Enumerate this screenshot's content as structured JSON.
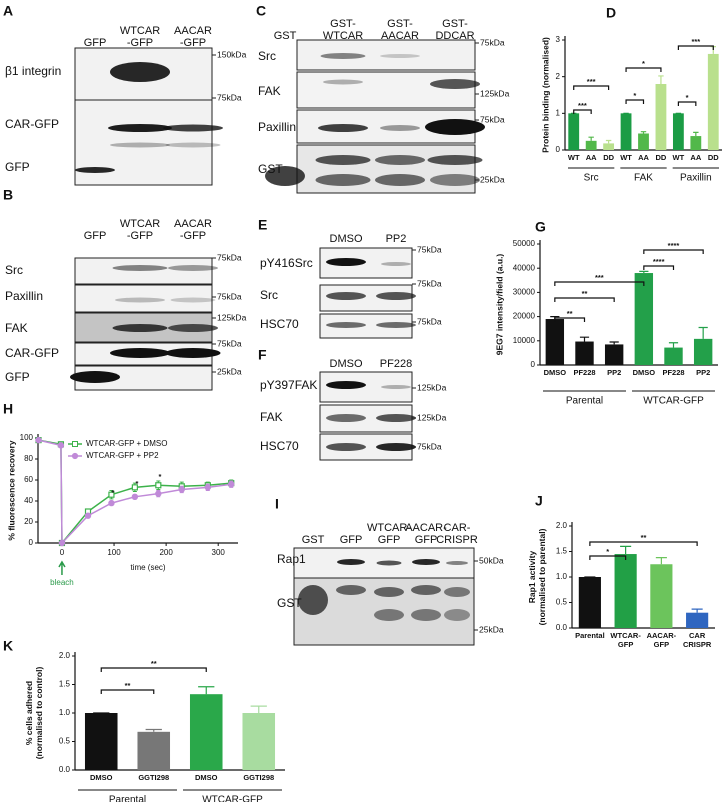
{
  "blots": [
    {
      "letter": "A",
      "lanes": [
        "GFP",
        "WTCAR\n-GFP",
        "AACAR\n-GFP"
      ],
      "rows": [
        {
          "label": "β1 integrin",
          "marker": "150kDa"
        },
        {
          "label": "CAR-GFP",
          "marker": "75kDa"
        },
        {
          "label": "GFP"
        }
      ]
    },
    {
      "letter": "B",
      "lanes": [
        "GFP",
        "WTCAR\n-GFP",
        "AACAR\n-GFP"
      ],
      "rows": [
        {
          "label": "Src",
          "marker": "75kDa"
        },
        {
          "label": "Paxillin",
          "marker": "75kDa"
        },
        {
          "label": "FAK",
          "marker": "125kDa"
        },
        {
          "label": "CAR-GFP",
          "marker": "75kDa"
        },
        {
          "label": "GFP",
          "marker": "25kDa"
        }
      ]
    },
    {
      "letter": "C",
      "lanes": [
        "GST",
        "GST-\nWTCAR",
        "GST-\nAACAR",
        "GST-\nDDCAR"
      ],
      "rows": [
        {
          "label": "Src",
          "marker": "75kDa"
        },
        {
          "label": "FAK",
          "marker": "125kDa"
        },
        {
          "label": "Paxillin",
          "marker": "75kDa"
        },
        {
          "label": "GST",
          "marker": "25kDa"
        }
      ]
    },
    {
      "letter": "E",
      "lanes": [
        "DMSO",
        "PP2"
      ],
      "rows": [
        {
          "label": "pY416Src",
          "marker": "75kDa"
        },
        {
          "label": "Src",
          "marker": "75kDa"
        },
        {
          "label": "HSC70",
          "marker": "75kDa"
        }
      ]
    },
    {
      "letter": "F",
      "lanes": [
        "DMSO",
        "PF228"
      ],
      "rows": [
        {
          "label": "pY397FAK",
          "marker": "125kDa"
        },
        {
          "label": "FAK",
          "marker": "125kDa"
        },
        {
          "label": "HSC70",
          "marker": "75kDa"
        }
      ]
    },
    {
      "letter": "I",
      "lanes": [
        "GST",
        "GFP",
        "WTCAR-\nGFP",
        "AACAR-\nGFP",
        "CAR-\nCRISPR"
      ],
      "rows": [
        {
          "label": "Rap1",
          "marker": "50kDa"
        },
        {
          "label": "GST",
          "marker": "25kDa"
        }
      ]
    }
  ],
  "chart_data": [
    {
      "type": "bar",
      "letter": "D",
      "ylabel": "Protein binding (normalised)",
      "categories": [
        "WT",
        "AA",
        "DD",
        "WT",
        "AA",
        "DD",
        "WT",
        "AA",
        "DD"
      ],
      "groups": [
        "Src",
        "FAK",
        "Paxillin"
      ],
      "values": [
        1,
        0.25,
        0.18,
        1,
        0.45,
        1.8,
        1,
        0.38,
        2.62
      ],
      "errors": [
        0,
        0.1,
        0.08,
        0,
        0.05,
        0.22,
        0,
        0.1,
        0.2
      ],
      "colors": [
        "#1b9c45",
        "#52b84a",
        "#b9e08d",
        "#1b9c45",
        "#52b84a",
        "#b9e08d",
        "#1b9c45",
        "#52b84a",
        "#b9e08d"
      ],
      "ylim": [
        0,
        3
      ],
      "yticks": [
        0,
        1,
        2,
        3
      ],
      "annotations": [
        "***",
        "***",
        "*",
        "*",
        "*",
        "***"
      ]
    },
    {
      "type": "bar",
      "letter": "G",
      "ylabel": "9EG7 intensity/field (a.u.)",
      "categories": [
        "DMSO",
        "PF228",
        "PP2",
        "DMSO",
        "PF228",
        "PP2"
      ],
      "groups": [
        "Parental",
        "WTCAR-GFP"
      ],
      "values": [
        19000,
        9700,
        8500,
        38000,
        7200,
        10800
      ],
      "errors": [
        1000,
        1800,
        1000,
        700,
        2000,
        4700
      ],
      "colors": [
        "#111111",
        "#111111",
        "#111111",
        "#23a04a",
        "#23a04a",
        "#23a04a"
      ],
      "ylim": [
        0,
        50000
      ],
      "yticks": [
        0,
        10000,
        20000,
        30000,
        40000,
        50000
      ],
      "annotations": [
        "**",
        "**",
        "***",
        "****",
        "****"
      ]
    },
    {
      "type": "line",
      "letter": "H",
      "ylabel": "% fluorescence recovery",
      "xlabel": "time (sec)",
      "x": [
        -45,
        -2,
        0,
        50,
        95,
        140,
        185,
        230,
        280,
        325
      ],
      "series": [
        {
          "name": "WTCAR-GFP + DMSO",
          "color": "#3cb24a",
          "values": [
            98,
            94,
            0,
            30,
            46,
            53,
            55,
            54,
            55,
            57
          ],
          "errors": [
            1,
            1,
            0,
            2,
            4,
            4,
            4,
            4,
            3,
            3
          ]
        },
        {
          "name": "WTCAR-GFP + PP2",
          "color": "#c08ad8",
          "values": [
            98,
            93,
            0,
            26,
            38,
            44,
            47,
            51,
            53,
            56
          ],
          "errors": [
            1,
            1,
            0,
            2,
            2,
            2,
            3,
            3,
            3,
            3
          ]
        }
      ],
      "xlim": [
        -46,
        338
      ],
      "xticks": [
        0,
        100,
        200,
        300
      ],
      "ylim": [
        0,
        100
      ],
      "yticks": [
        0,
        20,
        40,
        60,
        80,
        100
      ],
      "annotations": [
        "*",
        "*",
        "*",
        "bleach"
      ]
    },
    {
      "type": "bar",
      "letter": "J",
      "ylabel": "Rap1 activity\n(normalised to parental)",
      "categories": [
        "Parental",
        "WTCAR-\nGFP",
        "AACAR-\nGFP",
        "CAR\nCRISPR"
      ],
      "values": [
        1,
        1.45,
        1.25,
        0.3
      ],
      "errors": [
        0,
        0.15,
        0.13,
        0.07
      ],
      "colors": [
        "#111111",
        "#22a046",
        "#6cc45c",
        "#2f66c0"
      ],
      "ylim": [
        0,
        2
      ],
      "yticks": [
        {
          "value": 0,
          "label": "0.0"
        },
        0.5,
        {
          "value": 1,
          "label": "1.0"
        },
        1.5,
        {
          "value": 2,
          "label": "2.0"
        }
      ],
      "annotations": [
        "*",
        "**"
      ]
    },
    {
      "type": "bar",
      "letter": "K",
      "ylabel": "% cells adhered\n(normalised to control)",
      "categories": [
        "DMSO",
        "GGTI298",
        "DMSO",
        "GGTI298"
      ],
      "groups": [
        "Parental",
        "WTCAR-GFP"
      ],
      "values": [
        1,
        0.67,
        1.33,
        1
      ],
      "errors": [
        0,
        0.04,
        0.13,
        0.12
      ],
      "colors": [
        "#111111",
        "#777777",
        "#2aa84a",
        "#a8dca0"
      ],
      "ylim": [
        0,
        2
      ],
      "yticks": [
        {
          "value": 0,
          "label": "0.0"
        },
        0.5,
        {
          "value": 1,
          "label": "1.0"
        },
        1.5,
        {
          "value": 2,
          "label": "2.0"
        }
      ],
      "annotations": [
        "**",
        "**"
      ]
    }
  ]
}
